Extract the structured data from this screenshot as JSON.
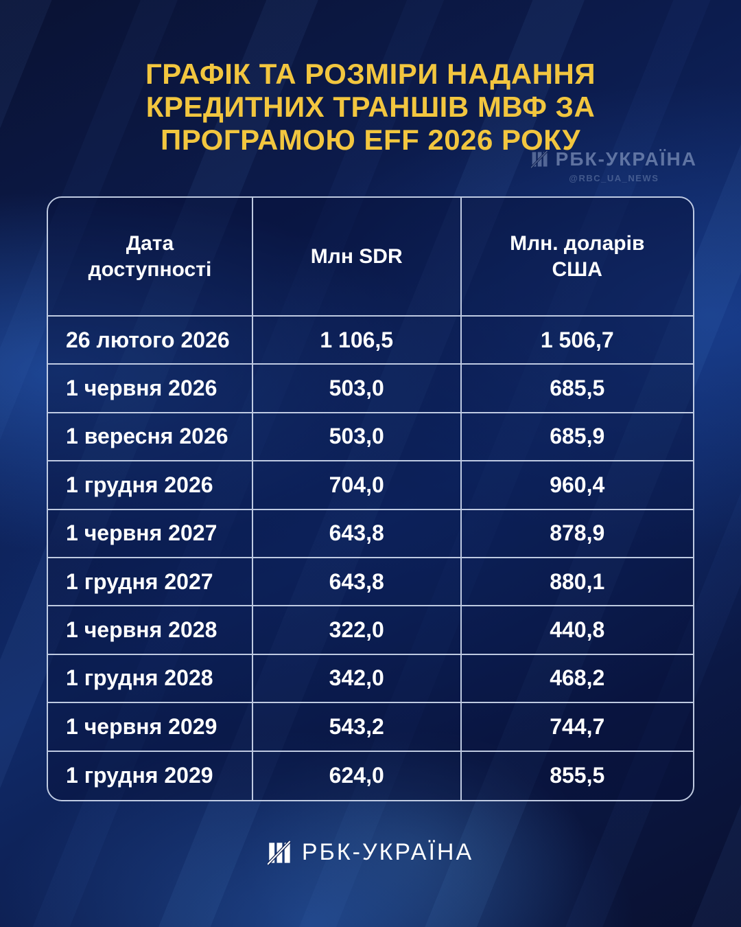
{
  "title": {
    "line1": "ГРАФІК ТА РОЗМІРИ НАДАННЯ",
    "line2": "КРЕДИТНИХ ТРАНШІВ МВФ ЗА",
    "line3": "ПРОГРАМОЮ EFF 2026 РОКУ"
  },
  "watermark": {
    "brand": "РБК-УКРАЇНА",
    "handle": "@RBC_UA_NEWS"
  },
  "footer": {
    "brand": "РБК-УКРАЇНА"
  },
  "colors": {
    "title_gold": "#f2c63f",
    "background_navy": "#0c1c4e",
    "table_border": "#ced9ee",
    "text_white": "#ffffff",
    "watermark_slate": "#94a6cb"
  },
  "table": {
    "headers": [
      "Дата\nдоступності",
      "Млн SDR",
      "Млн. доларів\nСША"
    ],
    "rows": [
      [
        "26 лютого 2026",
        "1 106,5",
        "1 506,7"
      ],
      [
        "1 червня 2026",
        "503,0",
        "685,5"
      ],
      [
        "1 вересня 2026",
        "503,0",
        "685,9"
      ],
      [
        "1 грудня 2026",
        "704,0",
        "960,4"
      ],
      [
        "1 червня 2027",
        "643,8",
        "878,9"
      ],
      [
        "1 грудня 2027",
        "643,8",
        "880,1"
      ],
      [
        "1 червня 2028",
        "322,0",
        "440,8"
      ],
      [
        "1 грудня 2028",
        "342,0",
        "468,2"
      ],
      [
        "1 червня 2029",
        "543,2",
        "744,7"
      ],
      [
        "1 грудня 2029",
        "624,0",
        "855,5"
      ]
    ]
  },
  "chart_data": {
    "type": "table",
    "title": "ГРАФІК ТА РОЗМІРИ НАДАННЯ КРЕДИТНИХ ТРАНШІВ МВФ ЗА ПРОГРАМОЮ EFF 2026 РОКУ",
    "columns": [
      "Дата доступності",
      "Млн SDR",
      "Млн. доларів США"
    ],
    "rows": [
      [
        "26 лютого 2026",
        1106.5,
        1506.7
      ],
      [
        "1 червня 2026",
        503.0,
        685.5
      ],
      [
        "1 вересня 2026",
        503.0,
        685.9
      ],
      [
        "1 грудня 2026",
        704.0,
        960.4
      ],
      [
        "1 червня 2027",
        643.8,
        878.9
      ],
      [
        "1 грудня 2027",
        643.8,
        880.1
      ],
      [
        "1 червня 2028",
        322.0,
        440.8
      ],
      [
        "1 грудня 2028",
        342.0,
        468.2
      ],
      [
        "1 червня 2029",
        543.2,
        744.7
      ],
      [
        "1 грудня 2029",
        624.0,
        855.5
      ]
    ],
    "source_brand": "РБК-УКРАЇНА"
  }
}
